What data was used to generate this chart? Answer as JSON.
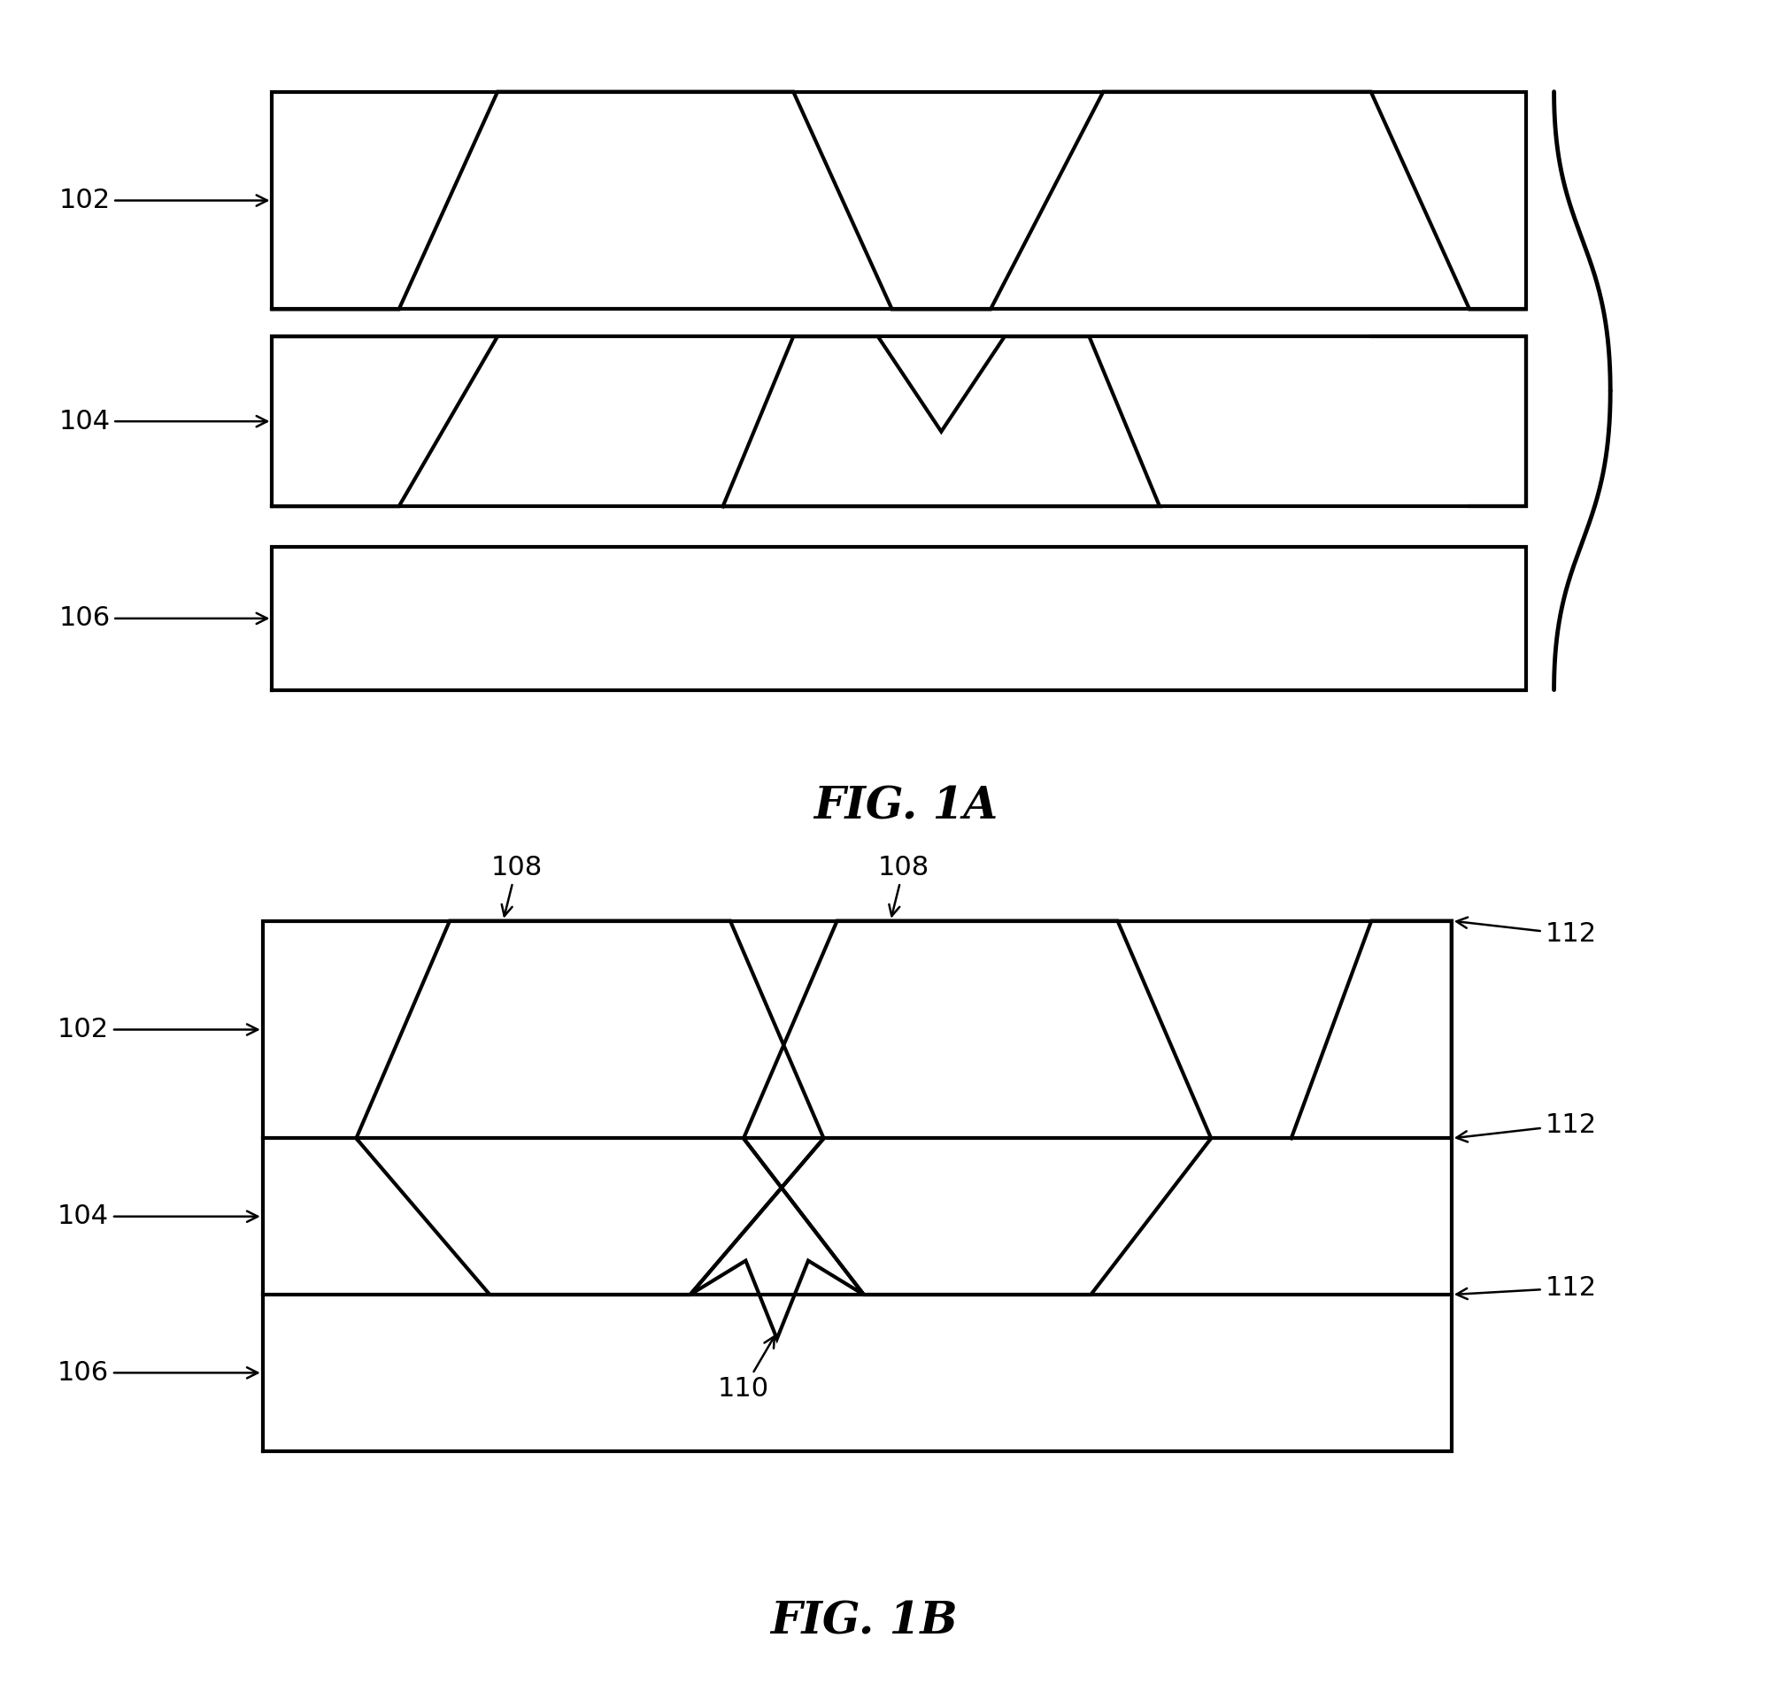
{
  "bg_color": "#ffffff",
  "line_color": "#000000",
  "line_width": 3.0,
  "fig1a_label": "FIG. 1A",
  "fig1b_label": "FIG. 1B",
  "font_size_label": 22,
  "font_size_fig": 36,
  "label_102": "102",
  "label_104": "104",
  "label_106": "106",
  "label_108": "108",
  "label_110": "110",
  "label_112": "112"
}
